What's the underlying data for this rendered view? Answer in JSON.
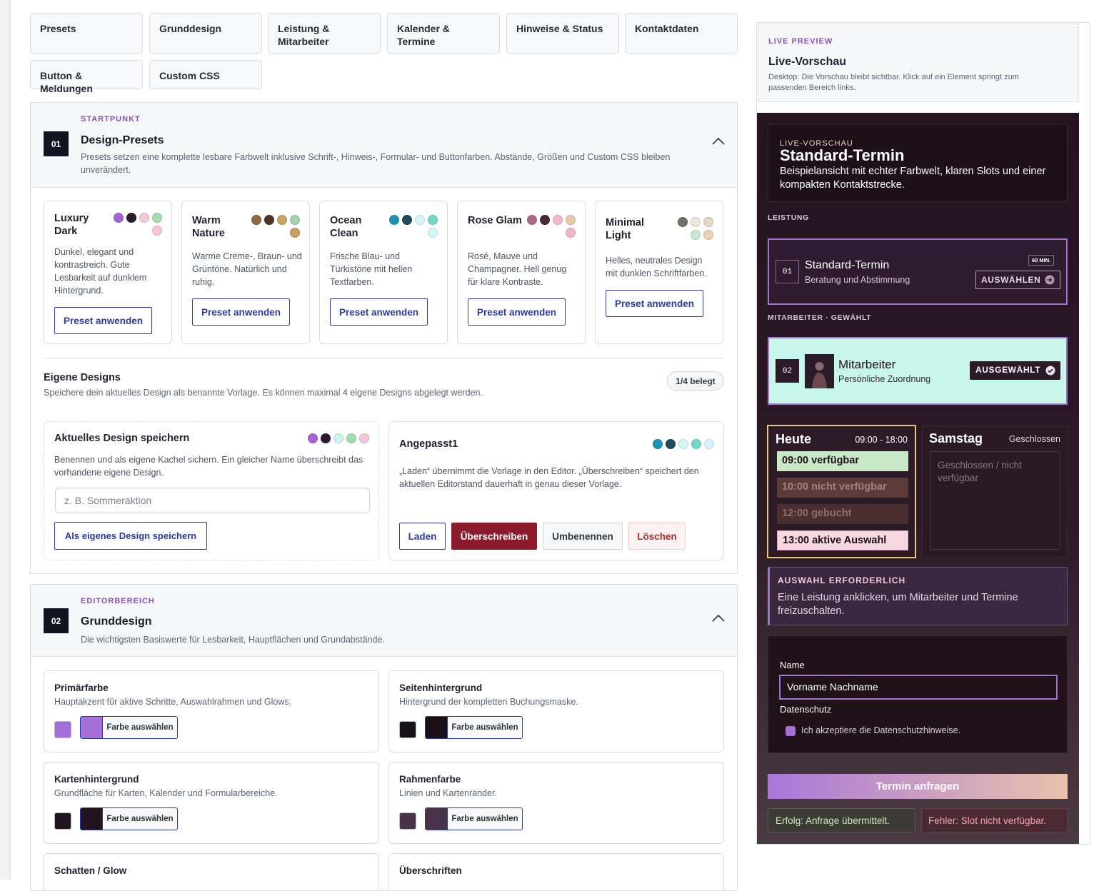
{
  "tabs": [
    "Presets",
    "Grunddesign",
    "Leistung & Mitarbeiter",
    "Kalender & Termine",
    "Hinweise & Status",
    "Kontaktdaten",
    "Button & Meldungen",
    "Custom CSS"
  ],
  "presets_section": {
    "eyebrow": "STARTPUNKT",
    "number": "01",
    "title": "Design-Presets",
    "description": "Presets setzen eine komplette lesbare Farbwelt inklusive Schrift-, Hinweis-, Formular- und Buttonfarben. Abstände, Größen und Custom CSS bleiben unverändert.",
    "presets": [
      {
        "name": "Luxury Dark",
        "colors": [
          "#a366d8",
          "#2b1b2f",
          "#f5c8d8",
          "#a3dcb2",
          "#f3c6d6"
        ],
        "description": "Dunkel, elegant und kontrastreich. Gute Lesbarkeit auf dunklem Hintergrund.",
        "button": "Preset anwenden"
      },
      {
        "name": "Warm Nature",
        "colors": [
          "#8c6a42",
          "#4a3626",
          "#c9a262",
          "#a2d4a8",
          "#c8a060"
        ],
        "description": "Warme Creme-, Braun- und Grüntöne. Natürlich und ruhig.",
        "button": "Preset anwenden"
      },
      {
        "name": "Ocean Clean",
        "colors": [
          "#1f91b2",
          "#1f4a5a",
          "#d6f6fa",
          "#6fd8c8",
          "#d4f6fa"
        ],
        "description": "Frische Blau- und Türkistöne mit hellen Textfarben.",
        "button": "Preset anwenden"
      },
      {
        "name": "Rose Glam",
        "colors": [
          "#b0668b",
          "#4a2637",
          "#f2b8c8",
          "#e8c8a8",
          "#f0b6c8"
        ],
        "description": "Rosé, Mauve und Champagner. Hell genug für klare Kontraste.",
        "button": "Preset anwenden"
      },
      {
        "name": "Minimal Light",
        "colors": [
          "#777066",
          "#eee6dc",
          "#e6d6c4",
          "#c8e6d4",
          "#e6d0b8"
        ],
        "description": "Helles, neutrales Design mit dunklen Schriftfarben.",
        "button": "Preset anwenden"
      }
    ],
    "own_designs": {
      "title": "Eigene Designs",
      "description": "Speichere dein aktuelles Design als benannte Vorlage. Es können maximal 4 eigene Designs abgelegt werden.",
      "badge": "1/4 belegt",
      "save_card": {
        "title": "Aktuelles Design speichern",
        "colors": [
          "#a366d8",
          "#2b1b2f",
          "#c8f4ea",
          "#a3dcb2",
          "#f5c8d8"
        ],
        "description": "Benennen und als eigene Kachel sichern. Ein gleicher Name überschreibt das vorhandene eigene Design.",
        "placeholder": "z. B. Sommeraktion",
        "button": "Als eigenes Design speichern"
      },
      "saved": {
        "title": "Angepasst1",
        "colors": [
          "#1f91b2",
          "#1f4a5a",
          "#d6f6fa",
          "#6fd8c8",
          "#d4f6fa"
        ],
        "description": "„Laden“ übernimmt die Vorlage in den Editor. „Überschreiben“ speichert den aktuellen Editorstand dauerhaft in genau dieser Vorlage.",
        "buttons": [
          "Laden",
          "Überschreiben",
          "Umbenennen",
          "Löschen"
        ]
      }
    }
  },
  "basic_section": {
    "eyebrow": "EDITORBEREICH",
    "number": "02",
    "title": "Grunddesign",
    "description": "Die wichtigsten Basiswerte für Lesbarkeit, Hauptflächen und Grundabstände.",
    "fields": [
      {
        "label": "Primärfarbe",
        "description": "Hauptakzent für aktive Schritte, Auswahlrahmen und Glows.",
        "color": "#a56fd8",
        "button": "Farbe auswählen"
      },
      {
        "label": "Seitenhintergrund",
        "description": "Hintergrund der kompletten Buchungsmaske.",
        "color": "#1a1018",
        "button": "Farbe auswählen"
      },
      {
        "label": "Kartenhintergrund",
        "description": "Grundfläche für Karten, Kalender und Formularbereiche.",
        "color": "#22141f",
        "button": "Farbe auswählen"
      },
      {
        "label": "Rahmenfarbe",
        "description": "Linien und Kartenränder.",
        "color": "#4a3248",
        "button": "Farbe auswählen"
      },
      {
        "label": "Schatten / Glow"
      },
      {
        "label": "Überschriften"
      }
    ]
  },
  "preview": {
    "eyebrow": "LIVE PREVIEW",
    "title": "Live-Vorschau",
    "description": "Desktop: Die Vorschau bleibt sichtbar. Klick auf ein Element springt zum passenden Bereich links.",
    "hero": {
      "eyebrow": "LIVE-VORSCHAU",
      "title": "Standard-Termin",
      "description": "Beispielansicht mit echter Farbwelt, klaren Slots und einer kompakten Kontaktstrecke."
    },
    "service_label": "LEISTUNG",
    "service": {
      "number": "01",
      "title": "Standard-Termin",
      "subtitle": "Beratung und Abstimmung",
      "duration": "60 MIN.",
      "button": "AUSWÄHLEN"
    },
    "employee_label": "MITARBEITER · GEWÄHLT",
    "employee": {
      "number": "02",
      "title": "Mitarbeiter",
      "subtitle": "Persönliche Zuordnung",
      "button": "AUSGEWÄHLT"
    },
    "calendar": [
      {
        "day": "Heute",
        "hours": "09:00 - 18:00",
        "slots": [
          "09:00 verfügbar",
          "10:00 nicht verfügbar",
          "12:00 gebucht",
          "13:00 aktive Auswahl"
        ]
      },
      {
        "day": "Samstag",
        "hours": "Geschlossen",
        "closed": "Geschlossen / nicht verfügbar"
      }
    ],
    "notice": {
      "title": "AUSWAHL ERFORDERLICH",
      "text": "Eine Leistung anklicken, um Mitarbeiter und Termine freizuschalten."
    },
    "form": {
      "name_label": "Name",
      "name_value": "Vorname Nachname",
      "privacy_label": "Datenschutz",
      "privacy_text": "Ich akzeptiere die Datenschutzhinweise."
    },
    "submit": "Termin anfragen",
    "success": "Erfolg: Anfrage übermittelt.",
    "error": "Fehler: Slot nicht verfügbar."
  }
}
